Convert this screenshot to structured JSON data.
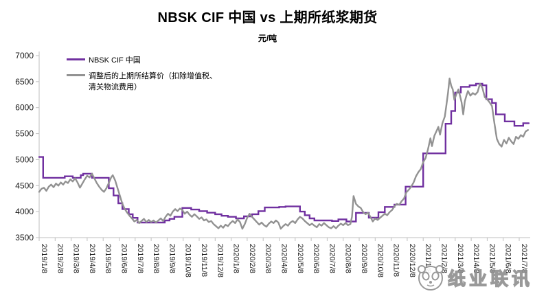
{
  "title": "NBSK CIF 中国 vs 上期所纸浆期货",
  "subtitle": "元/吨",
  "watermark": {
    "text": "纸业联讯",
    "logo": "panda-logo-icon"
  },
  "chart_data": {
    "type": "line",
    "title": "NBSK CIF 中国 vs 上期所纸浆期货",
    "ylabel": "元/吨",
    "grid": false,
    "legend_position": "top-left-inside",
    "colors": {
      "nbsk": "#7030A0",
      "shfe": "#929292",
      "axis": "#BFBFBF",
      "tick_text": "#1a1a1a"
    },
    "legend": {
      "items": [
        {
          "label": "NBSK CIF 中国",
          "color": "#7030A0"
        },
        {
          "label": "调整后的上期所结算价（扣除增值税、清关物流费用）",
          "label_line1": "调整后的上期所结算价（扣除增值税、",
          "label_line2": "清关物流费用）",
          "color": "#929292"
        }
      ]
    },
    "y_axis": {
      "min": 3500,
      "max": 7000,
      "step": 500,
      "tick_labels": [
        "3500",
        "4000",
        "4500",
        "5000",
        "5500",
        "6000",
        "6500",
        "7000"
      ]
    },
    "x_axis": {
      "unit": "month",
      "months_span": 30.7,
      "tick_labels": [
        "2019/1/8",
        "2019/2/8",
        "2019/3/8",
        "2019/4/8",
        "2019/5/8",
        "2019/6/8",
        "2019/7/8",
        "2019/8/8",
        "2019/9/8",
        "2019/10/8",
        "2019/11/8",
        "2019/12/8",
        "2020/1/8",
        "2020/2/8",
        "2020/3/8",
        "2020/4/8",
        "2020/5/8",
        "2020/6/8",
        "2020/7/8",
        "2020/8/8",
        "2020/9/8",
        "2020/10/8",
        "2020/11/8",
        "2020/12/8",
        "2021/1/8",
        "2021/2/8",
        "2021/3/8",
        "2021/4/8",
        "2021/5/8",
        "2021/6/8",
        "2021/7/8"
      ]
    },
    "series": [
      {
        "name": "NBSK CIF 中国",
        "color": "#7030A0",
        "style": "step",
        "width": 2.4,
        "points": [
          [
            0,
            5050
          ],
          [
            0.25,
            4650
          ],
          [
            1.6,
            4680
          ],
          [
            2.1,
            4650
          ],
          [
            2.6,
            4700
          ],
          [
            2.75,
            4730
          ],
          [
            3.3,
            4650
          ],
          [
            4.35,
            4450
          ],
          [
            4.65,
            4310
          ],
          [
            4.95,
            4160
          ],
          [
            5.2,
            4050
          ],
          [
            5.6,
            3950
          ],
          [
            5.85,
            3880
          ],
          [
            6.15,
            3790
          ],
          [
            7.85,
            3830
          ],
          [
            8.15,
            3860
          ],
          [
            8.45,
            3900
          ],
          [
            8.95,
            4070
          ],
          [
            9.5,
            4040
          ],
          [
            10,
            4010
          ],
          [
            10.5,
            3980
          ],
          [
            11,
            3950
          ],
          [
            11.4,
            3920
          ],
          [
            11.8,
            3900
          ],
          [
            12.3,
            3870
          ],
          [
            12.8,
            3910
          ],
          [
            13.3,
            3950
          ],
          [
            13.7,
            4010
          ],
          [
            14.1,
            4080
          ],
          [
            15,
            4090
          ],
          [
            15.4,
            4100
          ],
          [
            16.3,
            4000
          ],
          [
            16.6,
            3930
          ],
          [
            16.9,
            3870
          ],
          [
            17.2,
            3830
          ],
          [
            18.3,
            3820
          ],
          [
            18.7,
            3850
          ],
          [
            19.2,
            3810
          ],
          [
            19.8,
            3975
          ],
          [
            20.6,
            3885
          ],
          [
            21.2,
            3990
          ],
          [
            21.6,
            4090
          ],
          [
            22.2,
            4135
          ],
          [
            22.9,
            4480
          ],
          [
            24,
            5120
          ],
          [
            25.4,
            5690
          ],
          [
            25.75,
            5935
          ],
          [
            26,
            6290
          ],
          [
            26.35,
            6400
          ],
          [
            26.9,
            6430
          ],
          [
            27.3,
            6460
          ],
          [
            27.7,
            6430
          ],
          [
            27.95,
            6160
          ],
          [
            28.3,
            6090
          ],
          [
            28.55,
            5870
          ],
          [
            29.1,
            5735
          ],
          [
            29.7,
            5650
          ],
          [
            30.25,
            5700
          ],
          [
            30.6,
            5700
          ]
        ]
      },
      {
        "name": "调整后的上期所结算价（扣除增值税、清关物流费用）",
        "color": "#929292",
        "style": "line",
        "width": 2.4,
        "points": [
          [
            0,
            4380
          ],
          [
            0.15,
            4440
          ],
          [
            0.3,
            4460
          ],
          [
            0.45,
            4400
          ],
          [
            0.6,
            4480
          ],
          [
            0.75,
            4520
          ],
          [
            0.9,
            4470
          ],
          [
            1.05,
            4540
          ],
          [
            1.2,
            4500
          ],
          [
            1.35,
            4560
          ],
          [
            1.5,
            4520
          ],
          [
            1.65,
            4580
          ],
          [
            1.8,
            4550
          ],
          [
            1.95,
            4620
          ],
          [
            2.1,
            4580
          ],
          [
            2.25,
            4640
          ],
          [
            2.4,
            4560
          ],
          [
            2.55,
            4460
          ],
          [
            2.7,
            4540
          ],
          [
            2.85,
            4620
          ],
          [
            3,
            4690
          ],
          [
            3.15,
            4660
          ],
          [
            3.3,
            4730
          ],
          [
            3.45,
            4640
          ],
          [
            3.6,
            4550
          ],
          [
            3.75,
            4480
          ],
          [
            3.9,
            4420
          ],
          [
            4.05,
            4380
          ],
          [
            4.2,
            4450
          ],
          [
            4.35,
            4550
          ],
          [
            4.5,
            4660
          ],
          [
            4.6,
            4700
          ],
          [
            4.75,
            4600
          ],
          [
            4.9,
            4450
          ],
          [
            5.05,
            4300
          ],
          [
            5.2,
            4150
          ],
          [
            5.35,
            4050
          ],
          [
            5.5,
            3980
          ],
          [
            5.65,
            3920
          ],
          [
            5.8,
            3870
          ],
          [
            5.95,
            3810
          ],
          [
            6.1,
            3840
          ],
          [
            6.25,
            3780
          ],
          [
            6.4,
            3820
          ],
          [
            6.55,
            3860
          ],
          [
            6.7,
            3800
          ],
          [
            6.85,
            3840
          ],
          [
            7,
            3800
          ],
          [
            7.15,
            3830
          ],
          [
            7.3,
            3790
          ],
          [
            7.45,
            3830
          ],
          [
            7.6,
            3870
          ],
          [
            7.75,
            3820
          ],
          [
            7.9,
            3900
          ],
          [
            8.05,
            3960
          ],
          [
            8.2,
            3920
          ],
          [
            8.35,
            4000
          ],
          [
            8.5,
            4050
          ],
          [
            8.65,
            4010
          ],
          [
            8.8,
            4060
          ],
          [
            8.95,
            4030
          ],
          [
            9.1,
            3960
          ],
          [
            9.25,
            4000
          ],
          [
            9.4,
            3940
          ],
          [
            9.55,
            3900
          ],
          [
            9.7,
            3950
          ],
          [
            9.85,
            3910
          ],
          [
            10,
            3860
          ],
          [
            10.15,
            3890
          ],
          [
            10.3,
            3830
          ],
          [
            10.45,
            3850
          ],
          [
            10.6,
            3800
          ],
          [
            10.75,
            3820
          ],
          [
            10.9,
            3760
          ],
          [
            11.05,
            3720
          ],
          [
            11.2,
            3680
          ],
          [
            11.35,
            3730
          ],
          [
            11.5,
            3690
          ],
          [
            11.65,
            3750
          ],
          [
            11.8,
            3720
          ],
          [
            11.95,
            3780
          ],
          [
            12.1,
            3820
          ],
          [
            12.25,
            3780
          ],
          [
            12.4,
            3850
          ],
          [
            12.55,
            3800
          ],
          [
            12.7,
            3670
          ],
          [
            12.85,
            3760
          ],
          [
            13,
            3880
          ],
          [
            13.15,
            3960
          ],
          [
            13.3,
            3900
          ],
          [
            13.45,
            3850
          ],
          [
            13.6,
            3800
          ],
          [
            13.75,
            3750
          ],
          [
            13.9,
            3790
          ],
          [
            14.05,
            3740
          ],
          [
            14.2,
            3710
          ],
          [
            14.35,
            3770
          ],
          [
            14.5,
            3810
          ],
          [
            14.65,
            3780
          ],
          [
            14.8,
            3830
          ],
          [
            14.95,
            3790
          ],
          [
            15.1,
            3670
          ],
          [
            15.25,
            3720
          ],
          [
            15.4,
            3760
          ],
          [
            15.55,
            3730
          ],
          [
            15.7,
            3790
          ],
          [
            15.85,
            3820
          ],
          [
            16,
            3780
          ],
          [
            16.15,
            3850
          ],
          [
            16.3,
            3900
          ],
          [
            16.45,
            3870
          ],
          [
            16.6,
            3820
          ],
          [
            16.75,
            3780
          ],
          [
            16.9,
            3740
          ],
          [
            17.05,
            3770
          ],
          [
            17.2,
            3730
          ],
          [
            17.35,
            3700
          ],
          [
            17.5,
            3760
          ],
          [
            17.65,
            3730
          ],
          [
            17.8,
            3780
          ],
          [
            17.95,
            3740
          ],
          [
            18.1,
            3700
          ],
          [
            18.25,
            3680
          ],
          [
            18.4,
            3720
          ],
          [
            18.55,
            3680
          ],
          [
            18.7,
            3730
          ],
          [
            18.85,
            3770
          ],
          [
            19,
            3740
          ],
          [
            19.15,
            3780
          ],
          [
            19.3,
            3740
          ],
          [
            19.45,
            3760
          ],
          [
            19.55,
            3900
          ],
          [
            19.65,
            4300
          ],
          [
            19.8,
            4150
          ],
          [
            19.95,
            4100
          ],
          [
            20.1,
            4070
          ],
          [
            20.25,
            3990
          ],
          [
            20.4,
            3950
          ],
          [
            20.55,
            3980
          ],
          [
            20.7,
            3900
          ],
          [
            20.85,
            3810
          ],
          [
            21,
            3870
          ],
          [
            21.15,
            3840
          ],
          [
            21.3,
            3880
          ],
          [
            21.45,
            3920
          ],
          [
            21.6,
            3960
          ],
          [
            21.75,
            3930
          ],
          [
            21.9,
            3990
          ],
          [
            22.05,
            4030
          ],
          [
            22.2,
            4100
          ],
          [
            22.35,
            4150
          ],
          [
            22.5,
            4130
          ],
          [
            22.65,
            4200
          ],
          [
            22.8,
            4250
          ],
          [
            22.95,
            4370
          ],
          [
            23.1,
            4420
          ],
          [
            23.25,
            4480
          ],
          [
            23.4,
            4560
          ],
          [
            23.55,
            4680
          ],
          [
            23.7,
            4760
          ],
          [
            23.85,
            4820
          ],
          [
            24,
            4950
          ],
          [
            24.15,
            5030
          ],
          [
            24.3,
            5200
          ],
          [
            24.45,
            5410
          ],
          [
            24.55,
            5260
          ],
          [
            24.7,
            5460
          ],
          [
            24.85,
            5560
          ],
          [
            24.95,
            5630
          ],
          [
            25.05,
            5480
          ],
          [
            25.2,
            5700
          ],
          [
            25.35,
            5830
          ],
          [
            25.45,
            6050
          ],
          [
            25.55,
            6280
          ],
          [
            25.65,
            6560
          ],
          [
            25.75,
            6420
          ],
          [
            25.85,
            6350
          ],
          [
            25.95,
            6150
          ],
          [
            26.1,
            6280
          ],
          [
            26.2,
            6350
          ],
          [
            26.3,
            6230
          ],
          [
            26.4,
            6100
          ],
          [
            26.5,
            5870
          ],
          [
            26.6,
            6120
          ],
          [
            26.7,
            6230
          ],
          [
            26.8,
            6320
          ],
          [
            26.95,
            6230
          ],
          [
            27.1,
            6280
          ],
          [
            27.25,
            6250
          ],
          [
            27.4,
            6300
          ],
          [
            27.55,
            6460
          ],
          [
            27.7,
            6380
          ],
          [
            27.85,
            6200
          ],
          [
            28,
            6160
          ],
          [
            28.15,
            6100
          ],
          [
            28.3,
            6030
          ],
          [
            28.45,
            5700
          ],
          [
            28.6,
            5400
          ],
          [
            28.75,
            5300
          ],
          [
            28.9,
            5250
          ],
          [
            29.05,
            5380
          ],
          [
            29.2,
            5310
          ],
          [
            29.35,
            5420
          ],
          [
            29.5,
            5350
          ],
          [
            29.65,
            5300
          ],
          [
            29.8,
            5440
          ],
          [
            29.95,
            5400
          ],
          [
            30.1,
            5470
          ],
          [
            30.25,
            5440
          ],
          [
            30.4,
            5540
          ],
          [
            30.55,
            5570
          ]
        ]
      }
    ]
  }
}
